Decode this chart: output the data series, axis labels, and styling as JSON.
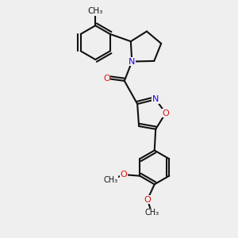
{
  "bg_color": "#efefef",
  "bond_color": "#111111",
  "N_color": "#2200ee",
  "O_color": "#dd1111",
  "lw": 1.5,
  "fs": 8.0,
  "dbo": 0.06,
  "xlim": [
    0,
    10
  ],
  "ylim": [
    0,
    10
  ]
}
